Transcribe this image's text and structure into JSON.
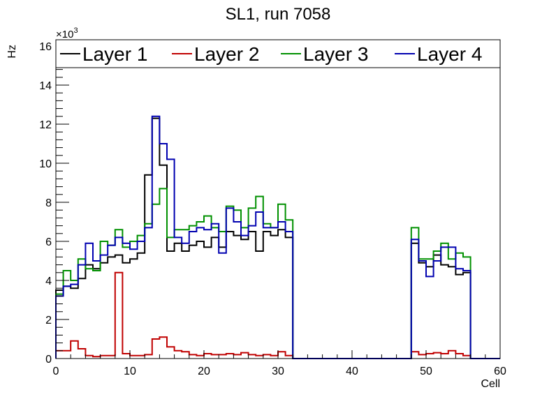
{
  "chart_data": {
    "type": "histogram",
    "title": "SL1, run 7058",
    "xlabel": "Cell",
    "ylabel": "Hz",
    "exponent_label": "×10",
    "exponent": "3",
    "xlim": [
      0,
      60
    ],
    "ylim": [
      0,
      16000
    ],
    "x_ticks": [
      "0",
      "10",
      "20",
      "30",
      "40",
      "50",
      "60"
    ],
    "y_ticks": [
      "0",
      "2",
      "4",
      "6",
      "8",
      "10",
      "12",
      "14",
      "16"
    ],
    "bin_edges_start": 0,
    "bin_width": 1,
    "series": [
      {
        "name": "Layer 1",
        "color": "#000000",
        "values": [
          3500,
          3700,
          3600,
          4100,
          4800,
          4600,
          4900,
          5200,
          5300,
          4900,
          5100,
          5400,
          9400,
          12300,
          9900,
          5500,
          5900,
          5500,
          5800,
          6000,
          5700,
          6200,
          5700,
          6500,
          6300,
          6100,
          6500,
          5500,
          6500,
          6300,
          6600,
          6200,
          0,
          0,
          0,
          0,
          0,
          0,
          0,
          0,
          0,
          0,
          0,
          0,
          0,
          0,
          0,
          0,
          5900,
          4900,
          4700,
          5300,
          4800,
          4700,
          4300,
          4400,
          0,
          0,
          0,
          0
        ]
      },
      {
        "name": "Layer 2",
        "color": "#c00000",
        "values": [
          400,
          400,
          900,
          500,
          150,
          100,
          150,
          150,
          4400,
          250,
          150,
          150,
          200,
          1000,
          1100,
          600,
          400,
          350,
          200,
          150,
          250,
          200,
          200,
          250,
          200,
          300,
          200,
          150,
          200,
          150,
          350,
          150,
          0,
          0,
          0,
          0,
          0,
          0,
          0,
          0,
          0,
          0,
          0,
          0,
          0,
          0,
          0,
          0,
          350,
          200,
          250,
          300,
          250,
          400,
          250,
          150,
          0,
          0,
          0,
          0
        ]
      },
      {
        "name": "Layer 3",
        "color": "#009000",
        "values": [
          3300,
          4500,
          4000,
          5100,
          4600,
          4500,
          6000,
          5800,
          6600,
          5700,
          6000,
          6300,
          6900,
          7900,
          8700,
          6200,
          6600,
          6600,
          6800,
          7000,
          7300,
          6700,
          6500,
          7800,
          7600,
          6700,
          7700,
          8300,
          6900,
          6700,
          7900,
          7100,
          0,
          0,
          0,
          0,
          0,
          0,
          0,
          0,
          0,
          0,
          0,
          0,
          0,
          0,
          0,
          0,
          6700,
          5100,
          5100,
          5500,
          5900,
          5100,
          5400,
          5200,
          0,
          0,
          0,
          0
        ]
      },
      {
        "name": "Layer 4",
        "color": "#0000b0",
        "values": [
          3200,
          3700,
          3800,
          4800,
          5900,
          5000,
          5300,
          5800,
          6200,
          5900,
          5600,
          6000,
          6700,
          12400,
          11000,
          10200,
          6200,
          5900,
          6500,
          6700,
          6600,
          6900,
          5400,
          7700,
          7000,
          6300,
          6800,
          7500,
          6700,
          6700,
          7000,
          6500,
          0,
          0,
          0,
          0,
          0,
          0,
          0,
          0,
          0,
          0,
          0,
          0,
          0,
          0,
          0,
          0,
          6100,
          5000,
          4200,
          5000,
          5700,
          5700,
          4600,
          4500,
          0,
          0,
          0,
          0
        ]
      }
    ]
  }
}
